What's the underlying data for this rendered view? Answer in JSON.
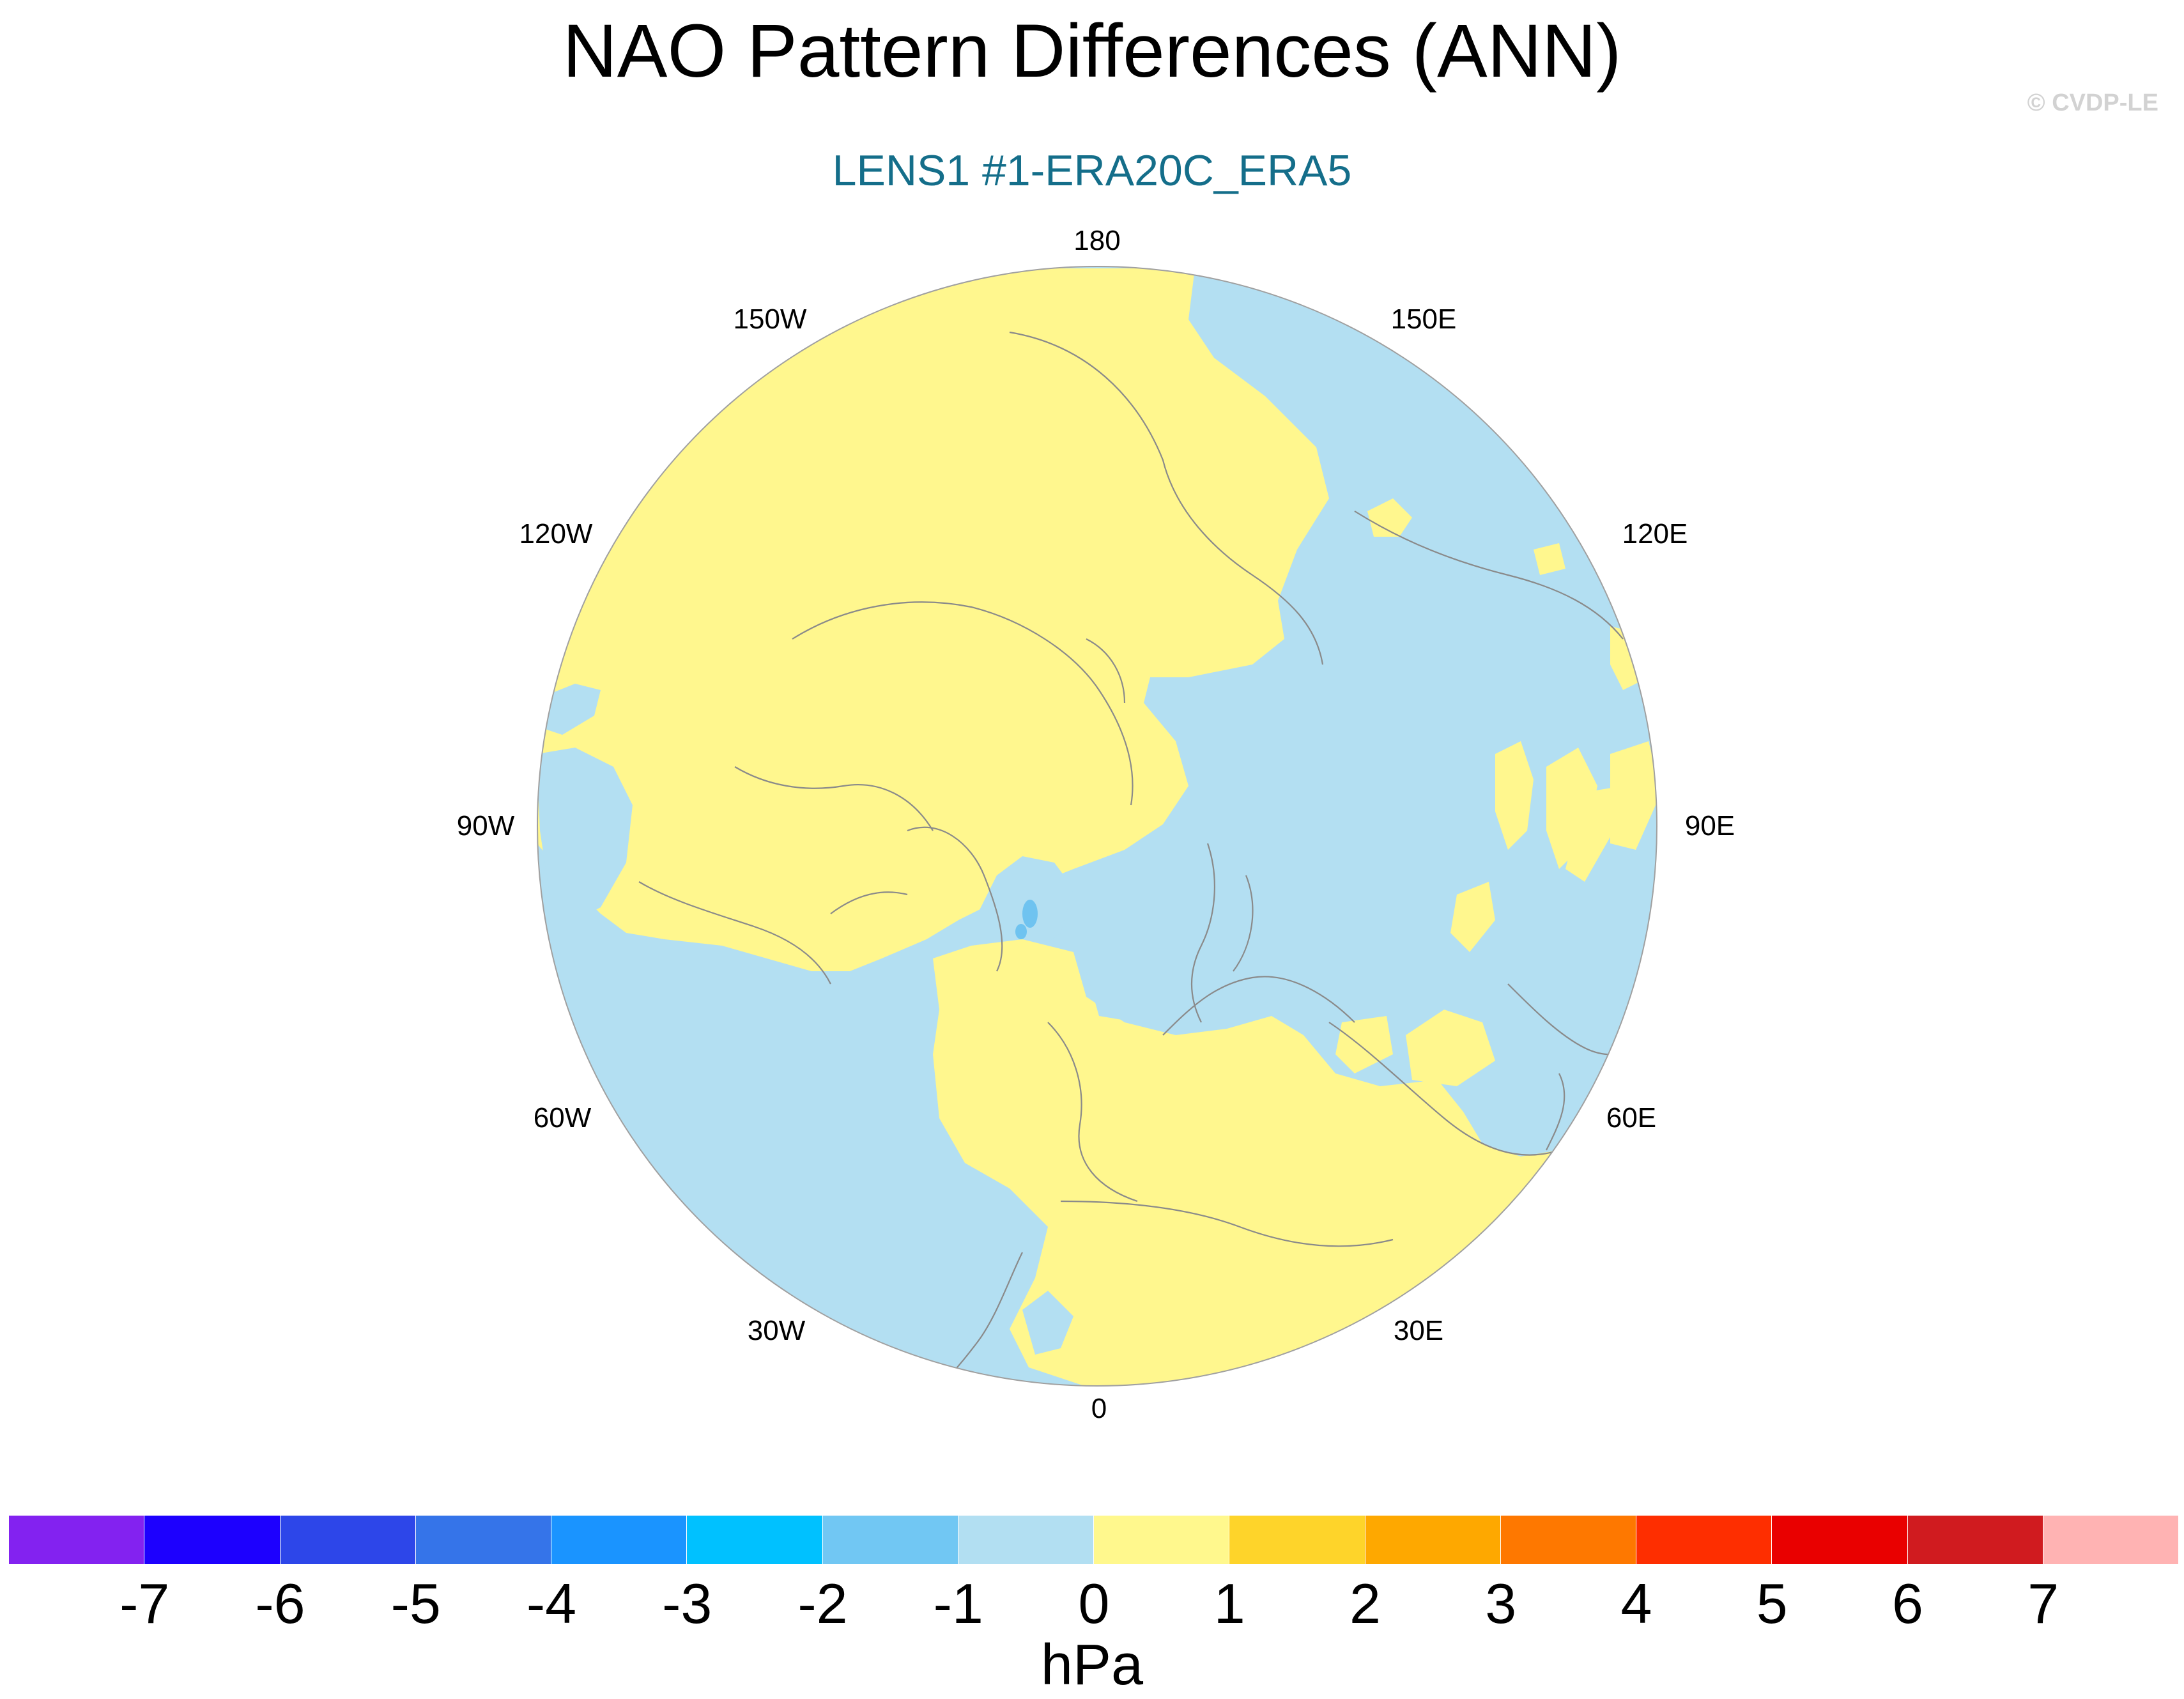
{
  "title": "NAO Pattern Differences (ANN)",
  "subtitle": "LENS1 #1-ERA20C_ERA5",
  "copyright": "© CVDP-LE",
  "map": {
    "projection": "north polar stereographic",
    "center_lon": 0,
    "longitude_labels": [
      "180",
      "150E",
      "120E",
      "90E",
      "60E",
      "30E",
      "0",
      "30W",
      "60W",
      "90W",
      "120W",
      "150W"
    ],
    "fill_colors": {
      "positive_0_1": "#fff78e",
      "negative_0_neg1": "#b3dff2",
      "negative_neg1_neg2": "#6fc3f0"
    },
    "coastline_color": "#8a8a8a"
  },
  "colorbar": {
    "units": "hPa",
    "labels": [
      "-7",
      "-6",
      "-5",
      "-4",
      "-3",
      "-2",
      "-1",
      "0",
      "1",
      "2",
      "3",
      "4",
      "5",
      "6",
      "7"
    ],
    "colors": [
      "#8322f0",
      "#1d00fe",
      "#2d46e9",
      "#3574e9",
      "#1a94ff",
      "#00c1ff",
      "#71c7f3",
      "#b2dff2",
      "#fff88d",
      "#fed42a",
      "#fea800",
      "#fe7800",
      "#fe2e00",
      "#e90000",
      "#d01b1f",
      "#ffb3b3"
    ]
  }
}
